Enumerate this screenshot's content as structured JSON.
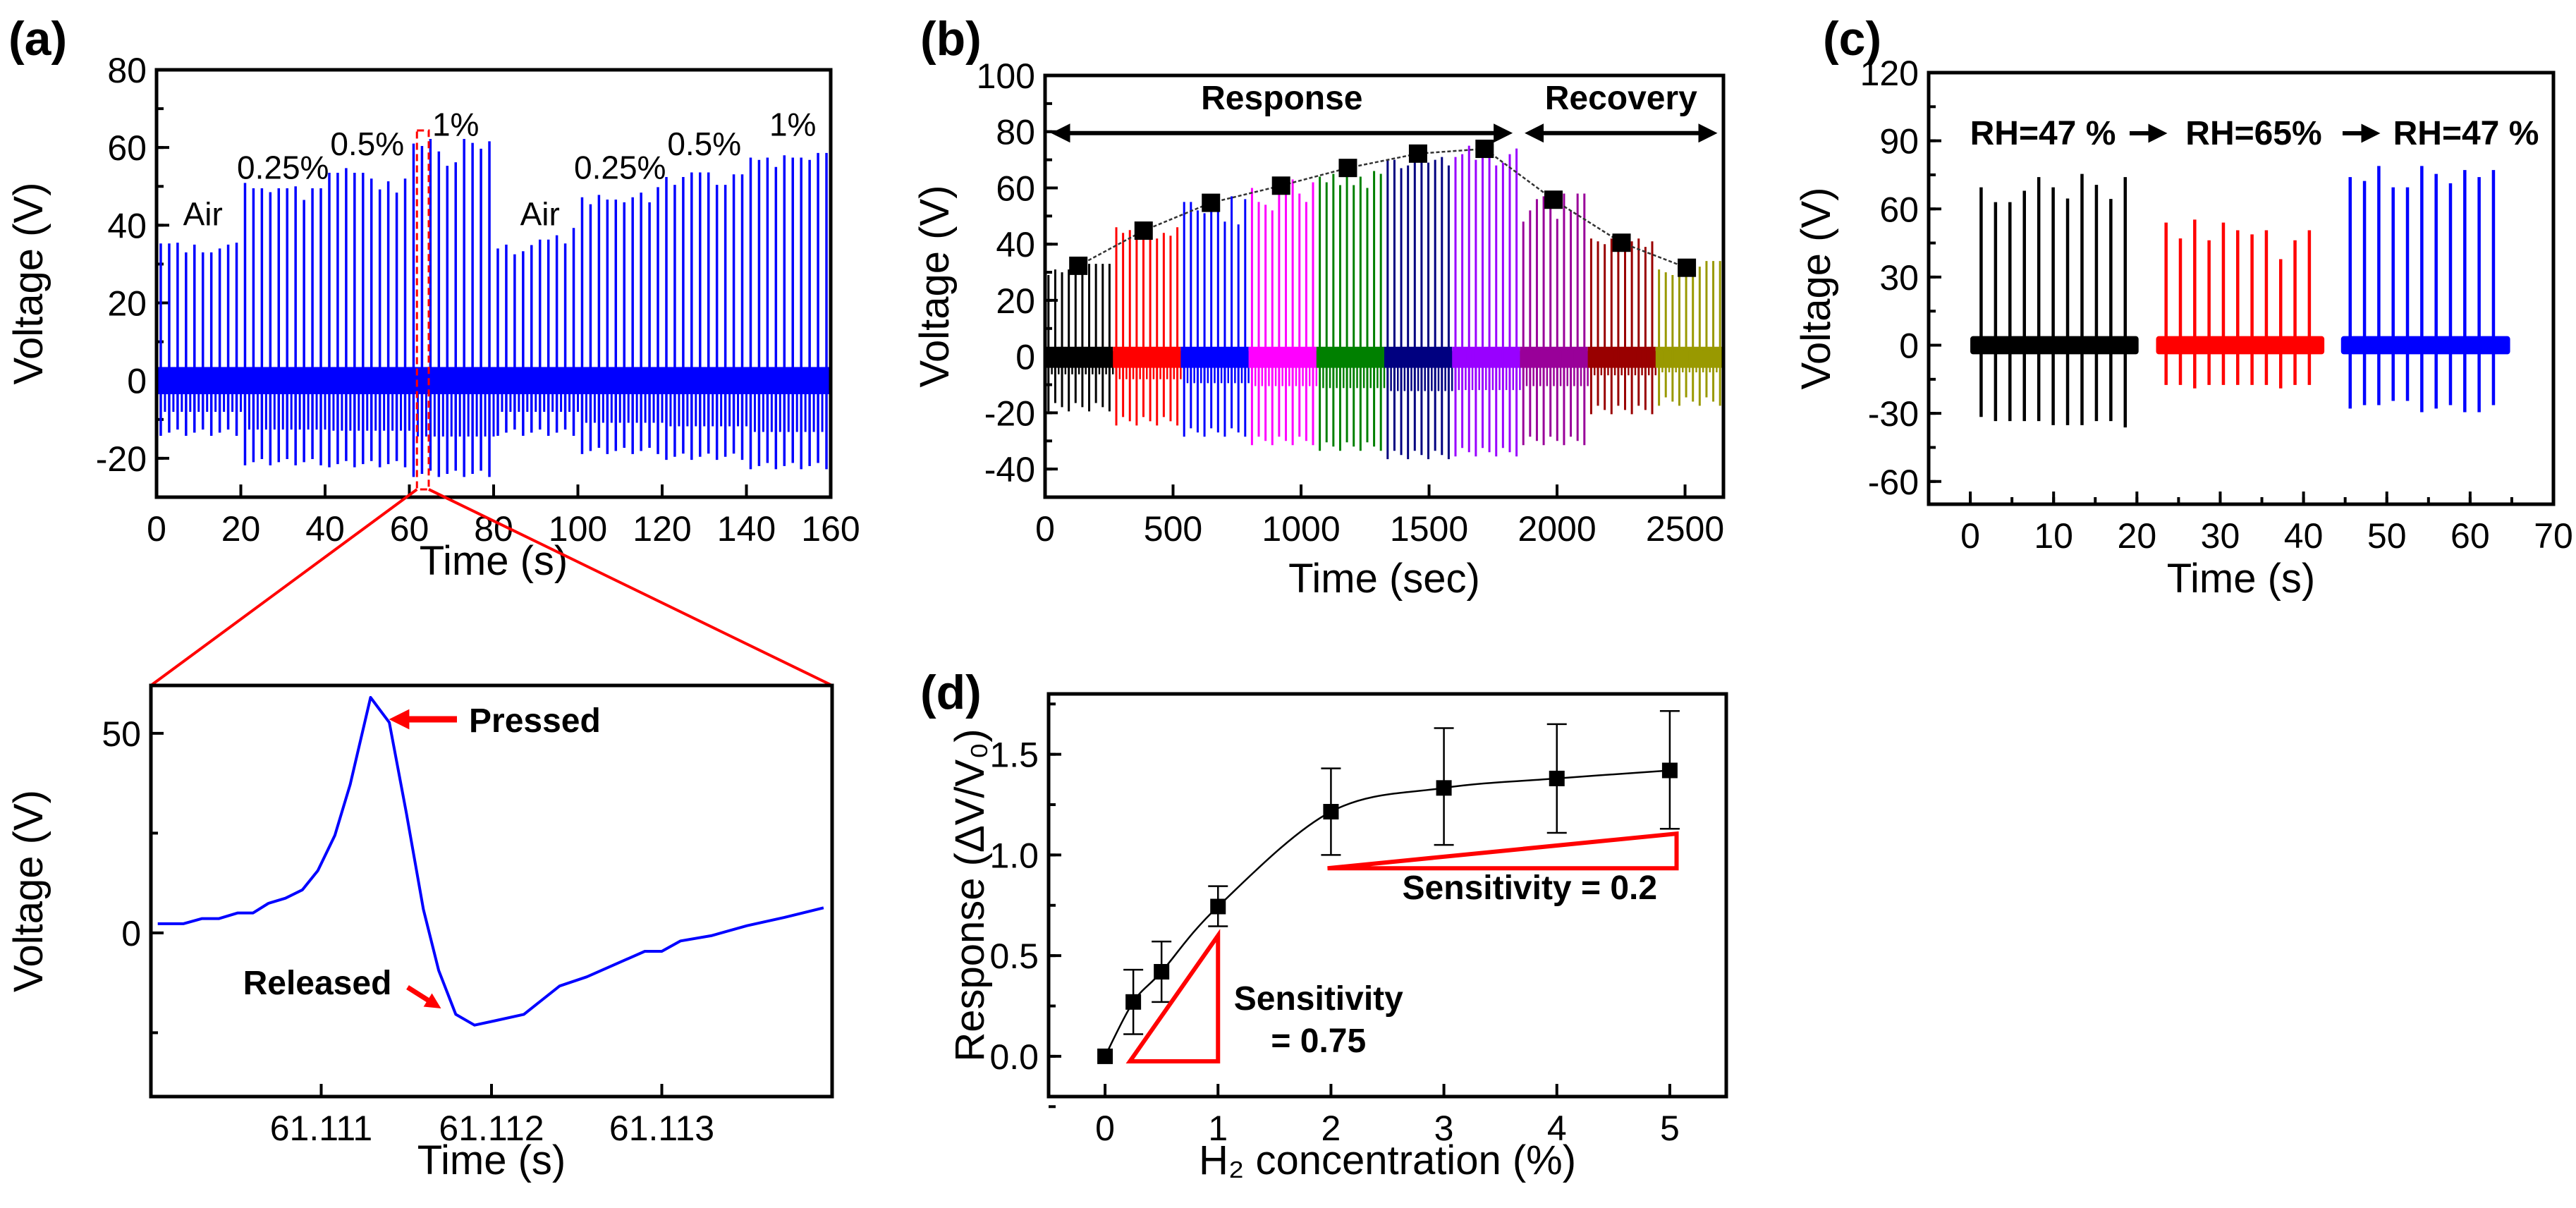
{
  "panel_labels": {
    "a": "(a)",
    "b": "(b)",
    "c": "(c)",
    "d": "(d)"
  },
  "chart_data": [
    {
      "id": "a_top",
      "type": "line",
      "xlabel": "Time (s)",
      "ylabel": "Voltage (V)",
      "xlim": [
        0,
        160
      ],
      "ylim": [
        -30,
        80
      ],
      "xticks": [
        "0",
        "20",
        "40",
        "60",
        "80",
        "100",
        "120",
        "140",
        "160"
      ],
      "yticks": [
        "-20",
        "0",
        "20",
        "40",
        "60",
        "80"
      ],
      "color": "#0000ff",
      "zoom_box_color": "#ff0000",
      "segments": [
        {
          "label": "Air",
          "peaks": [
            35.3,
            35.3,
            35.5,
            33,
            35,
            33,
            33,
            34,
            35,
            35.5
          ],
          "trough": -13.4
        },
        {
          "label": "0.25%",
          "peaks": [
            50.9,
            49.5,
            49.5,
            48.5,
            49.5,
            49.5,
            50,
            46.5,
            49.5,
            49.5
          ],
          "trough": -21
        },
        {
          "label": "0.5%",
          "peaks": [
            53.5,
            53.5,
            54.7,
            53.5,
            53.5,
            52,
            49.2,
            51.3,
            48.4,
            52
          ],
          "trough": -21.5
        },
        {
          "label": "1%",
          "peaks": [
            61,
            60.4,
            62.2,
            59,
            55.3,
            56.2,
            62.2,
            61.2,
            59.7,
            61.6
          ],
          "trough": -24
        },
        {
          "label": "Air",
          "peaks": [
            34,
            35,
            32.5,
            33.3,
            34.9,
            36.3,
            36.3,
            37.4,
            35.3,
            39.3
          ],
          "trough": -13.4
        },
        {
          "label": "0.25%",
          "peaks": [
            47.2,
            45.4,
            47.8,
            46.6,
            46.6,
            45.9,
            47.2,
            48.4,
            45.9,
            49.8
          ],
          "trough": -18.1
        },
        {
          "label": "0.5%",
          "peaks": [
            52.4,
            50.4,
            52.4,
            53.6,
            53.6,
            53.6,
            50.4,
            50.4,
            53.1,
            53.1
          ],
          "trough": -19.6
        },
        {
          "label": "1%",
          "peaks": [
            57.4,
            56.8,
            57.4,
            55,
            58,
            57.4,
            57.4,
            56.8,
            58.6,
            58.6
          ],
          "trough": -22
        }
      ]
    },
    {
      "id": "a_zoom",
      "type": "line",
      "xlabel": "Time (s)",
      "ylabel": "Voltage (V)",
      "xlim": [
        61.11,
        61.114
      ],
      "ylim": [
        -41,
        62
      ],
      "xticks": [
        "61.111",
        "61.112",
        "61.113"
      ],
      "yticks": [
        "0",
        "50"
      ],
      "color": "#0000ff",
      "x": [
        61.11004,
        61.11019,
        61.1103,
        61.1104,
        61.11051,
        61.1106,
        61.11069,
        61.11079,
        61.11089,
        61.11098,
        61.11108,
        61.11117,
        61.11129,
        61.1114,
        61.1115,
        61.1116,
        61.11169,
        61.11179,
        61.1119,
        61.11202,
        61.11219,
        61.1124,
        61.11256,
        61.1129,
        61.113,
        61.11311,
        61.11329,
        61.1135,
        61.11372,
        61.11395
      ],
      "y": [
        2.3,
        2.3,
        3.6,
        3.6,
        5.0,
        5.0,
        7.4,
        8.7,
        10.8,
        15.6,
        24.4,
        37.2,
        59,
        52.7,
        30,
        5.9,
        -9.4,
        -20.4,
        -23.1,
        -22.0,
        -20.4,
        -13.3,
        -11.0,
        -4.6,
        -4.6,
        -2.0,
        -0.7,
        1.8,
        3.9,
        6.3
      ],
      "annotations": {
        "pressed": "Pressed",
        "released": "Released",
        "arrow_color": "#ff0000"
      }
    },
    {
      "id": "b",
      "type": "line",
      "xlabel": "Time (sec)",
      "ylabel": "Voltage (V)",
      "xlim": [
        0,
        2650
      ],
      "ylim": [
        -50,
        100
      ],
      "xticks": [
        "0",
        "500",
        "1000",
        "1500",
        "2000",
        "2500"
      ],
      "yticks": [
        "-40",
        "-20",
        "0",
        "20",
        "40",
        "60",
        "80",
        "100"
      ],
      "segment_duration": 265,
      "segments": [
        {
          "color": "#000000",
          "peaks": [
            29,
            31,
            30,
            31,
            33,
            32,
            33,
            33,
            33,
            33
          ],
          "trough": -18
        },
        {
          "color": "#ff0000",
          "peaks": [
            46,
            44,
            45,
            43,
            45,
            46,
            42,
            44,
            43,
            46
          ],
          "trough": -23
        },
        {
          "color": "#0000ff",
          "peaks": [
            55,
            55,
            52,
            51,
            53,
            55,
            48,
            57,
            47,
            56
          ],
          "trough": -27
        },
        {
          "color": "#ff00ff",
          "peaks": [
            60,
            55,
            54,
            52,
            59,
            61,
            63,
            58,
            55,
            62
          ],
          "trough": -30
        },
        {
          "color": "#008000",
          "peaks": [
            64,
            62,
            65,
            61,
            67,
            61,
            64,
            60,
            66,
            65
          ],
          "trough": -32
        },
        {
          "color": "#000080",
          "peaks": [
            70,
            70,
            67,
            68,
            70,
            72,
            69,
            70,
            71,
            68
          ],
          "trough": -35
        },
        {
          "color": "#9900ff",
          "peaks": [
            71,
            72,
            75,
            70,
            73,
            74,
            68,
            69,
            72,
            74
          ],
          "trough": -34
        },
        {
          "color": "#990099",
          "peaks": [
            48,
            52,
            56,
            57,
            54,
            49,
            58,
            52,
            58,
            58
          ],
          "trough": -30
        },
        {
          "color": "#990000",
          "peaks": [
            42,
            41,
            40,
            42,
            38,
            40,
            41,
            42,
            39,
            41
          ],
          "trough": -19
        },
        {
          "color": "#999900",
          "peaks": [
            31,
            30,
            29,
            30,
            31,
            33,
            32,
            34,
            34,
            34
          ],
          "trough": -16
        }
      ],
      "markers": {
        "x": [
          130,
          385,
          648,
          922,
          1183,
          1457,
          1717,
          1986,
          2252,
          2507
        ],
        "y": [
          32.3,
          44.8,
          54.7,
          60.8,
          67.1,
          72.2,
          73.9,
          55.8,
          40.5,
          31.6
        ]
      },
      "phases": [
        {
          "label": "Response",
          "from": 0,
          "to": 1850
        },
        {
          "label": "Recovery",
          "from": 1850,
          "to": 2650
        }
      ]
    },
    {
      "id": "c",
      "type": "line",
      "xlabel": "Time (s)",
      "ylabel": "Voltage (V)",
      "xlim": [
        -5,
        70
      ],
      "ylim": [
        -70,
        120
      ],
      "xticks": [
        "0",
        "10",
        "20",
        "30",
        "40",
        "50",
        "60",
        "70"
      ],
      "yticks": [
        "-60",
        "-30",
        "0",
        "30",
        "60",
        "90",
        "120"
      ],
      "conditions": [
        {
          "label": "RH=47 %",
          "color": "#000000",
          "band": [
            0,
            20.2
          ],
          "first_spike": 1.3,
          "last_spike": 18.6,
          "peaks": [
            69.5,
            63,
            63,
            68,
            74,
            69.5,
            64.6,
            75.4,
            70.6,
            64.4,
            74
          ],
          "troughs": [
            -31.6,
            -33.4,
            -33.4,
            -33.4,
            -33.4,
            -35.2,
            -35.2,
            -35.2,
            -33.4,
            -33.4,
            -36.2
          ]
        },
        {
          "label": "RH=65%",
          "color": "#ff0000",
          "band": [
            22.3,
            42.5
          ],
          "first_spike": 23.5,
          "last_spike": 40.7,
          "peaks": [
            54,
            47,
            55.3,
            46.2,
            54,
            50.6,
            48.8,
            50.6,
            37.9,
            46.2,
            50.6
          ],
          "troughs": [
            -17.5,
            -17.5,
            -19,
            -17.5,
            -17.5,
            -17.5,
            -17.5,
            -17.5,
            -19,
            -17.5,
            -17.5
          ]
        },
        {
          "label": "RH=47 %",
          "color": "#0000ff",
          "band": [
            44.5,
            64.8
          ],
          "first_spike": 45.6,
          "last_spike": 62.8,
          "peaks": [
            74,
            72.3,
            78.9,
            69.5,
            69.5,
            78.9,
            75.4,
            71.3,
            77.1,
            74,
            77.1
          ],
          "troughs": [
            -27.9,
            -26.4,
            -26.4,
            -24.5,
            -24.5,
            -29.5,
            -27.9,
            -26.4,
            -29.5,
            -29.5,
            -26.4
          ]
        }
      ]
    },
    {
      "id": "d",
      "type": "scatter",
      "xlabel": "H₂ concentration (%)",
      "ylabel": "Response (ΔV/V₀)",
      "xlim": [
        -0.5,
        5.5
      ],
      "ylim": [
        -0.2,
        1.8
      ],
      "xticks": [
        "0",
        "1",
        "2",
        "3",
        "4",
        "5"
      ],
      "yticks": [
        "0.0",
        "0.5",
        "1.0",
        "1.5"
      ],
      "x": [
        0,
        0.25,
        0.5,
        1,
        2,
        3,
        4,
        5
      ],
      "y": [
        0,
        0.27,
        0.42,
        0.744,
        1.215,
        1.333,
        1.38,
        1.42
      ],
      "err_low": [
        null,
        0.11,
        0.27,
        0.646,
        1.0,
        1.05,
        1.11,
        1.13
      ],
      "err_high": [
        null,
        0.43,
        0.57,
        0.845,
        1.43,
        1.63,
        1.65,
        1.715
      ],
      "annotations": {
        "sens_low_1": "Sensitivity",
        "sens_low_2": "= 0.75",
        "sens_high": "Sensitivity = 0.2",
        "triangle_color": "#ff0000"
      }
    }
  ]
}
